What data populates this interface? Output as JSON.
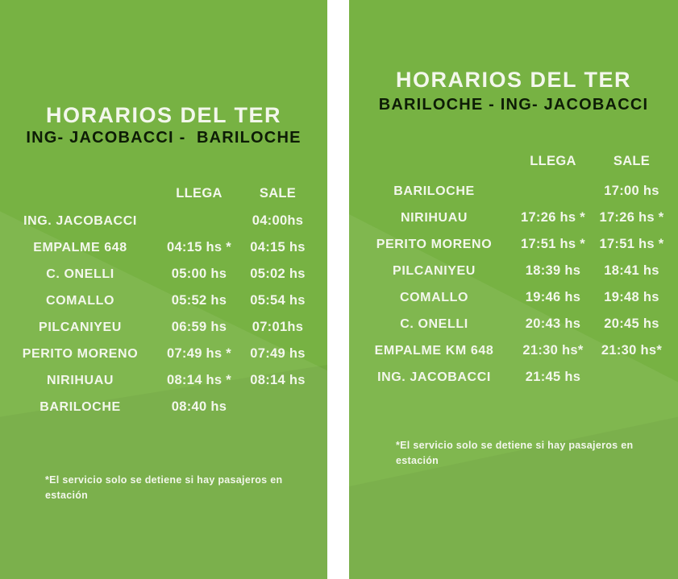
{
  "colors": {
    "panel_green": "#77b243",
    "gap_white": "#ffffff",
    "text_white": "#f3f7ec",
    "subtitle_dark": "#0d1c06"
  },
  "panels": [
    {
      "title": "HORARIOS DEL TER",
      "subtitle": "ING- JACOBACCI -  BARILOCHE",
      "columns": {
        "llega": "LLEGA",
        "sale": "SALE"
      },
      "rows": [
        {
          "station": "ING. JACOBACCI",
          "llega": "",
          "sale": "04:00hs"
        },
        {
          "station": "EMPALME 648",
          "llega": "04:15 hs *",
          "sale": "04:15 hs"
        },
        {
          "station": "C. ONELLI",
          "llega": "05:00 hs",
          "sale": "05:02 hs"
        },
        {
          "station": "COMALLO",
          "llega": "05:52 hs",
          "sale": "05:54 hs"
        },
        {
          "station": "PILCANIYEU",
          "llega": "06:59 hs",
          "sale": "07:01hs"
        },
        {
          "station": "PERITO MORENO",
          "llega": "07:49 hs *",
          "sale": "07:49 hs"
        },
        {
          "station": "NIRIHUAU",
          "llega": "08:14 hs *",
          "sale": "08:14 hs"
        },
        {
          "station": "BARILOCHE",
          "llega": "08:40 hs",
          "sale": ""
        }
      ],
      "footnote": "*El servicio solo se detiene si hay pasajeros en\nestación"
    },
    {
      "title": "HORARIOS DEL TER",
      "subtitle": "BARILOCHE - ING- JACOBACCI",
      "columns": {
        "llega": "LLEGA",
        "sale": "SALE"
      },
      "rows": [
        {
          "station": "BARILOCHE",
          "llega": "",
          "sale": "17:00 hs"
        },
        {
          "station": "NIRIHUAU",
          "llega": "17:26 hs *",
          "sale": "17:26 hs *"
        },
        {
          "station": "PERITO MORENO",
          "llega": "17:51 hs *",
          "sale": "17:51 hs *"
        },
        {
          "station": "PILCANIYEU",
          "llega": "18:39 hs",
          "sale": "18:41 hs"
        },
        {
          "station": "COMALLO",
          "llega": "19:46 hs",
          "sale": "19:48 hs"
        },
        {
          "station": "C. ONELLI",
          "llega": "20:43 hs",
          "sale": "20:45 hs"
        },
        {
          "station": "EMPALME KM 648",
          "llega": "21:30 hs*",
          "sale": "21:30 hs*"
        },
        {
          "station": "ING. JACOBACCI",
          "llega": "21:45 hs",
          "sale": ""
        }
      ],
      "footnote": "*El servicio solo se detiene si hay pasajeros en\nestación"
    }
  ]
}
